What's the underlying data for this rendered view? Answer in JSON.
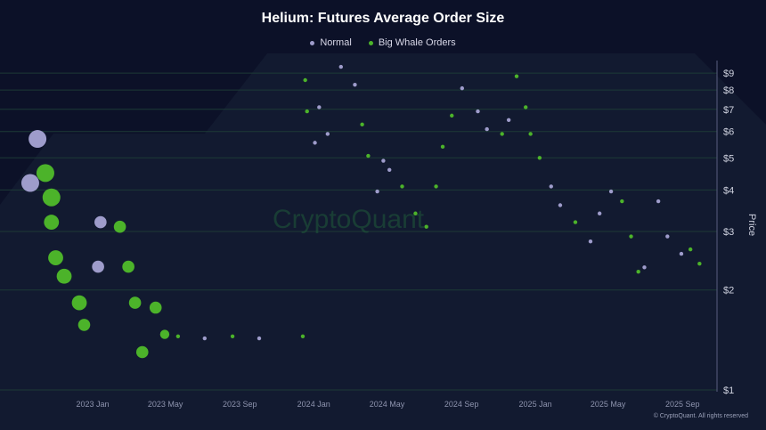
{
  "chart_data": {
    "type": "scatter",
    "title": "Helium: Futures Average Order Size",
    "ylabel": "Price",
    "y_scale": "log",
    "ylim": [
      1,
      10
    ],
    "y_ticks": [
      "$1",
      "$2",
      "$3",
      "$4",
      "$5",
      "$6",
      "$7",
      "$8",
      "$9"
    ],
    "y_tick_values": [
      1,
      2,
      3,
      4,
      5,
      6,
      7,
      8,
      9
    ],
    "x_ticks": [
      "2023 Jan",
      "2023 May",
      "2023 Sep",
      "2024 Jan",
      "2024 May",
      "2024 Sep",
      "2025 Jan",
      "2025 May",
      "2025 Sep"
    ],
    "x_tick_dates": [
      "2023-01-01",
      "2023-05-01",
      "2023-09-01",
      "2024-01-01",
      "2024-05-01",
      "2024-09-01",
      "2025-01-01",
      "2025-05-01",
      "2025-09-01"
    ],
    "legend_placement": "top-center",
    "grid": true,
    "series": [
      {
        "name": "Normal",
        "color": "#9e9ccb",
        "points": [
          [
            "2022-10-02",
            5.7,
            5
          ],
          [
            "2022-09-20",
            4.2,
            5
          ],
          [
            "2023-01-14",
            3.2,
            3
          ],
          [
            "2023-01-10",
            2.35,
            3
          ],
          [
            "2023-07-05",
            1.43,
            1
          ],
          [
            "2023-10-03",
            1.43,
            1
          ],
          [
            "2024-01-10",
            7.1,
            1
          ],
          [
            "2024-01-03",
            5.55,
            1
          ],
          [
            "2024-01-24",
            5.9,
            1
          ],
          [
            "2024-02-15",
            9.4,
            1
          ],
          [
            "2024-03-09",
            8.3,
            1
          ],
          [
            "2024-04-25",
            4.9,
            1
          ],
          [
            "2024-04-15",
            3.96,
            1
          ],
          [
            "2024-05-05",
            4.6,
            1
          ],
          [
            "2024-09-02",
            8.1,
            1
          ],
          [
            "2024-09-28",
            6.9,
            1
          ],
          [
            "2024-10-13",
            6.1,
            1
          ],
          [
            "2024-11-18",
            6.5,
            1
          ],
          [
            "2025-01-27",
            4.1,
            1
          ],
          [
            "2025-02-11",
            3.6,
            1
          ],
          [
            "2025-04-02",
            2.8,
            1
          ],
          [
            "2025-04-17",
            3.4,
            1
          ],
          [
            "2025-05-06",
            3.96,
            1
          ],
          [
            "2025-06-30",
            2.34,
            1
          ],
          [
            "2025-07-23",
            3.7,
            1
          ],
          [
            "2025-08-07",
            2.9,
            1
          ],
          [
            "2025-08-30",
            2.57,
            1
          ]
        ]
      },
      {
        "name": "Big Whale Orders",
        "color": "#4cb32a",
        "points": [
          [
            "2022-10-15",
            4.5,
            5
          ],
          [
            "2022-10-25",
            3.8,
            5
          ],
          [
            "2022-10-25",
            3.2,
            4
          ],
          [
            "2022-11-01",
            2.5,
            4
          ],
          [
            "2022-11-15",
            2.2,
            4
          ],
          [
            "2022-12-10",
            1.83,
            4
          ],
          [
            "2022-12-18",
            1.57,
            3
          ],
          [
            "2023-02-15",
            3.1,
            3
          ],
          [
            "2023-03-01",
            2.35,
            3
          ],
          [
            "2023-03-12",
            1.83,
            3
          ],
          [
            "2023-03-24",
            1.3,
            3
          ],
          [
            "2023-04-15",
            1.77,
            3
          ],
          [
            "2023-04-30",
            1.47,
            2
          ],
          [
            "2023-05-22",
            1.45,
            1
          ],
          [
            "2023-08-20",
            1.45,
            1
          ],
          [
            "2023-12-14",
            1.45,
            1
          ],
          [
            "2023-12-18",
            8.57,
            1
          ],
          [
            "2023-12-21",
            6.9,
            1
          ],
          [
            "2024-03-21",
            6.3,
            1
          ],
          [
            "2024-03-31",
            5.07,
            1
          ],
          [
            "2024-05-26",
            4.1,
            1
          ],
          [
            "2024-06-17",
            3.4,
            1
          ],
          [
            "2024-07-05",
            3.1,
            1
          ],
          [
            "2024-07-21",
            4.1,
            1
          ],
          [
            "2024-08-01",
            5.4,
            1
          ],
          [
            "2024-08-16",
            6.7,
            1
          ],
          [
            "2024-11-07",
            5.9,
            1
          ],
          [
            "2024-12-01",
            8.8,
            1
          ],
          [
            "2024-12-16",
            7.1,
            1
          ],
          [
            "2024-12-24",
            5.9,
            1
          ],
          [
            "2025-01-08",
            5.0,
            1
          ],
          [
            "2025-03-08",
            3.2,
            1
          ],
          [
            "2025-05-24",
            3.7,
            1
          ],
          [
            "2025-06-08",
            2.9,
            1
          ],
          [
            "2025-06-20",
            2.27,
            1
          ],
          [
            "2025-09-14",
            2.65,
            1
          ],
          [
            "2025-09-29",
            2.4,
            1
          ]
        ]
      }
    ]
  },
  "watermark": "CryptoQuant",
  "copyright": "© CryptoQuant. All rights reserved"
}
